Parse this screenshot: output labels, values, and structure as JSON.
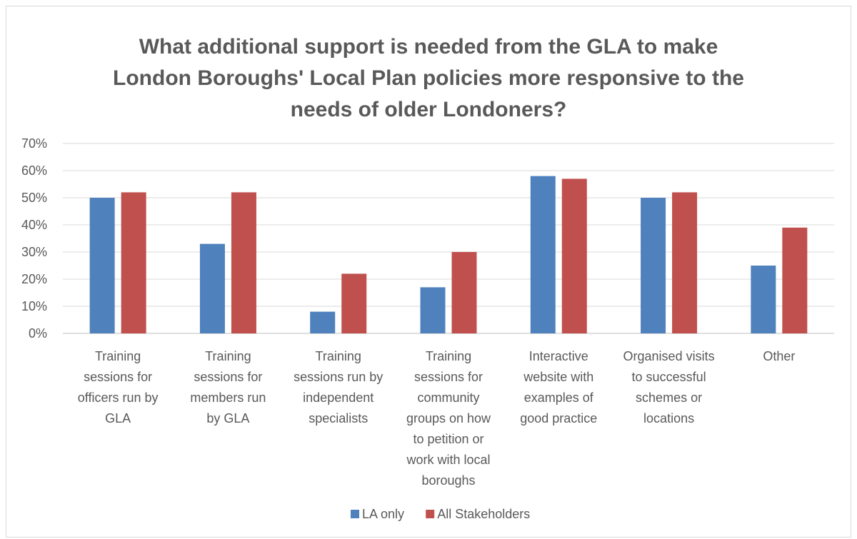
{
  "chart_data": {
    "type": "bar",
    "title_lines": [
      "What additional support is needed from the GLA to make",
      "London Boroughs' Local Plan policies more responsive to the",
      "needs of older Londoners?"
    ],
    "categories": [
      [
        "Training",
        "sessions for",
        "officers run by",
        "GLA"
      ],
      [
        "Training",
        "sessions for",
        "members run",
        "by GLA"
      ],
      [
        "Training",
        "sessions run by",
        "independent",
        "specialists"
      ],
      [
        "Training",
        "sessions for",
        "community",
        "groups on how",
        "to petition or",
        "work with local",
        "boroughs"
      ],
      [
        "Interactive",
        "website with",
        "examples of",
        "good practice"
      ],
      [
        "Organised visits",
        "to successful",
        "schemes or",
        "locations"
      ],
      [
        "Other"
      ]
    ],
    "series": [
      {
        "name": "LA only",
        "color": "#4f81bd",
        "values": [
          50,
          33,
          8,
          17,
          58,
          50,
          25
        ]
      },
      {
        "name": "All Stakeholders",
        "color": "#c0504d",
        "values": [
          52,
          52,
          22,
          30,
          57,
          52,
          39
        ]
      }
    ],
    "y_ticks": [
      "0%",
      "10%",
      "20%",
      "30%",
      "40%",
      "50%",
      "60%",
      "70%"
    ],
    "ylim": [
      0,
      70
    ],
    "grid": true,
    "legend_position": "bottom"
  }
}
